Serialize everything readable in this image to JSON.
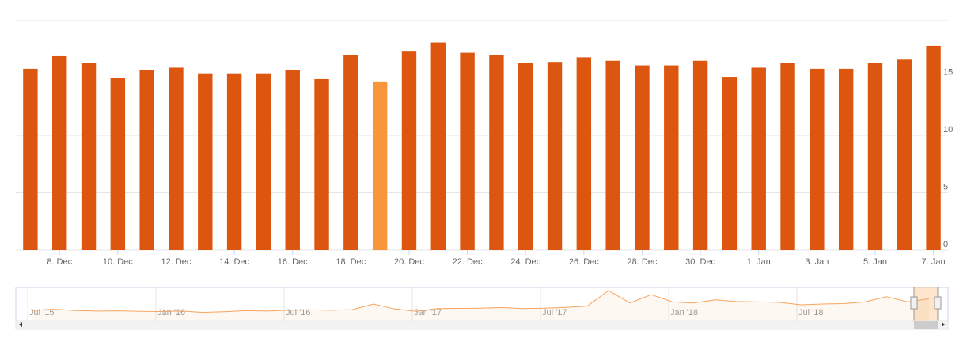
{
  "chart_data": [
    {
      "type": "bar",
      "categories": [
        null,
        "8. Dec",
        null,
        "10. Dec",
        null,
        "12. Dec",
        null,
        "14. Dec",
        null,
        "16. Dec",
        null,
        "18. Dec",
        null,
        "20. Dec",
        null,
        "22. Dec",
        null,
        "24. Dec",
        null,
        "26. Dec",
        null,
        "28. Dec",
        null,
        "30. Dec",
        null,
        "1. Jan",
        null,
        "3. Jan",
        null,
        "5. Jan",
        null,
        "7. Jan"
      ],
      "values": [
        15.8,
        16.9,
        16.3,
        15.0,
        15.7,
        15.9,
        15.4,
        15.4,
        15.4,
        15.7,
        14.9,
        17.0,
        14.7,
        17.3,
        18.1,
        17.2,
        17.0,
        16.3,
        16.4,
        16.8,
        16.5,
        16.1,
        16.1,
        16.5,
        15.1,
        15.9,
        16.3,
        15.8,
        15.8,
        16.3,
        16.6,
        17.8
      ],
      "color": "#dd560f",
      "highlighted": 12,
      "highlight_color": "#f7963a",
      "ylim": [
        0,
        20
      ],
      "yticks": [
        0,
        5,
        10,
        15
      ],
      "grid": true
    },
    {
      "type": "line",
      "categories": [
        "Jul '15",
        null,
        null,
        null,
        null,
        null,
        "Jan '16",
        null,
        null,
        null,
        null,
        null,
        "Jul '16",
        null,
        null,
        null,
        null,
        null,
        "Jan '17",
        null,
        null,
        null,
        null,
        null,
        "Jul '17",
        null,
        null,
        null,
        null,
        null,
        "Jan '18",
        null,
        null,
        null,
        null,
        null,
        "Jul '18",
        null,
        null,
        null,
        null,
        null,
        null
      ],
      "values": [
        10.8,
        11.5,
        10.9,
        10.6,
        10.7,
        10.5,
        10.4,
        10.6,
        10.0,
        10.3,
        10.8,
        10.6,
        11.0,
        11.2,
        11.0,
        11.3,
        14.0,
        11.6,
        10.5,
        11.8,
        11.9,
        12.0,
        12.3,
        11.8,
        12.0,
        12.4,
        13.0,
        20.5,
        14.5,
        18.5,
        15.0,
        14.5,
        16.0,
        15.2,
        15.0,
        14.8,
        13.6,
        14.0,
        14.2,
        15.0,
        17.5,
        15.0,
        16.5
      ],
      "color": "#f7a35c",
      "ylim": [
        6,
        22
      ]
    }
  ]
}
